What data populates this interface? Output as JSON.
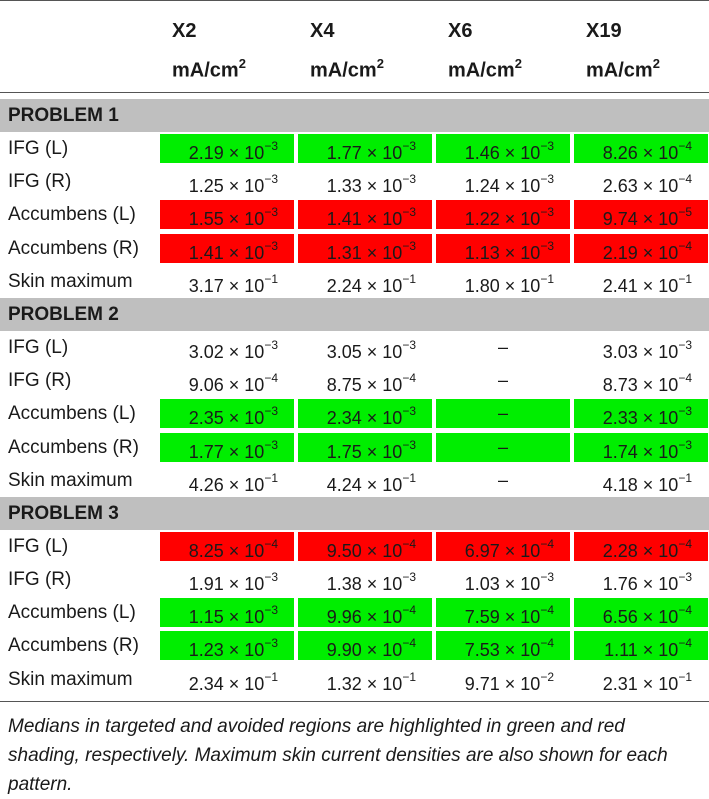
{
  "header": {
    "columns": [
      {
        "label": "X2",
        "unit_base": "mA/cm",
        "unit_exp": "2"
      },
      {
        "label": "X4",
        "unit_base": "mA/cm",
        "unit_exp": "2"
      },
      {
        "label": "X6",
        "unit_base": "mA/cm",
        "unit_exp": "2"
      },
      {
        "label": "X19",
        "unit_base": "mA/cm",
        "unit_exp": "2"
      }
    ]
  },
  "colors": {
    "green": "#00ee00",
    "red": "#ff0000",
    "section_gray": "#bfbfbf"
  },
  "sections": [
    {
      "title": "PROBLEM 1",
      "rows": [
        {
          "label": "IFG (L)",
          "cells": [
            {
              "m": "2.19 × 10",
              "e": "−3",
              "hl": "green"
            },
            {
              "m": "1.77 × 10",
              "e": "−3",
              "hl": "green"
            },
            {
              "m": "1.46 × 10",
              "e": "−3",
              "hl": "green"
            },
            {
              "m": "8.26 × 10",
              "e": "−4",
              "hl": "green"
            }
          ]
        },
        {
          "label": "IFG (R)",
          "cells": [
            {
              "m": "1.25 × 10",
              "e": "−3",
              "hl": ""
            },
            {
              "m": "1.33 × 10",
              "e": "−3",
              "hl": ""
            },
            {
              "m": "1.24 × 10",
              "e": "−3",
              "hl": ""
            },
            {
              "m": "2.63 × 10",
              "e": "−4",
              "hl": ""
            }
          ]
        },
        {
          "label": "Accumbens (L)",
          "cells": [
            {
              "m": "1.55 × 10",
              "e": "−3",
              "hl": "red"
            },
            {
              "m": "1.41 × 10",
              "e": "−3",
              "hl": "red"
            },
            {
              "m": "1.22 × 10",
              "e": "−3",
              "hl": "red"
            },
            {
              "m": "9.74 × 10",
              "e": "−5",
              "hl": "red"
            }
          ]
        },
        {
          "label": "Accumbens (R)",
          "cells": [
            {
              "m": "1.41 × 10",
              "e": "−3",
              "hl": "red"
            },
            {
              "m": "1.31 × 10",
              "e": "−3",
              "hl": "red"
            },
            {
              "m": "1.13 × 10",
              "e": "−3",
              "hl": "red"
            },
            {
              "m": "2.19 × 10",
              "e": "−4",
              "hl": "red"
            }
          ]
        },
        {
          "label": "Skin maximum",
          "cells": [
            {
              "m": "3.17 × 10",
              "e": "−1",
              "hl": ""
            },
            {
              "m": "2.24 × 10",
              "e": "−1",
              "hl": ""
            },
            {
              "m": "1.80 × 10",
              "e": "−1",
              "hl": ""
            },
            {
              "m": "2.41 × 10",
              "e": "−1",
              "hl": ""
            }
          ]
        }
      ]
    },
    {
      "title": "PROBLEM 2",
      "rows": [
        {
          "label": "IFG (L)",
          "cells": [
            {
              "m": "3.02 × 10",
              "e": "−3",
              "hl": ""
            },
            {
              "m": "3.05 × 10",
              "e": "−3",
              "hl": ""
            },
            {
              "m": "–",
              "e": "",
              "hl": ""
            },
            {
              "m": "3.03 × 10",
              "e": "−3",
              "hl": ""
            }
          ]
        },
        {
          "label": "IFG (R)",
          "cells": [
            {
              "m": "9.06 × 10",
              "e": "−4",
              "hl": ""
            },
            {
              "m": "8.75 × 10",
              "e": "−4",
              "hl": ""
            },
            {
              "m": "–",
              "e": "",
              "hl": ""
            },
            {
              "m": "8.73 × 10",
              "e": "−4",
              "hl": ""
            }
          ]
        },
        {
          "label": "Accumbens (L)",
          "cells": [
            {
              "m": "2.35 × 10",
              "e": "−3",
              "hl": "green"
            },
            {
              "m": "2.34 × 10",
              "e": "−3",
              "hl": "green"
            },
            {
              "m": "–",
              "e": "",
              "hl": "green"
            },
            {
              "m": "2.33 × 10",
              "e": "−3",
              "hl": "green"
            }
          ]
        },
        {
          "label": "Accumbens (R)",
          "cells": [
            {
              "m": "1.77 × 10",
              "e": "−3",
              "hl": "green"
            },
            {
              "m": "1.75 × 10",
              "e": "−3",
              "hl": "green"
            },
            {
              "m": "–",
              "e": "",
              "hl": "green"
            },
            {
              "m": "1.74 × 10",
              "e": "−3",
              "hl": "green"
            }
          ]
        },
        {
          "label": "Skin maximum",
          "cells": [
            {
              "m": "4.26 × 10",
              "e": "−1",
              "hl": ""
            },
            {
              "m": "4.24 × 10",
              "e": "−1",
              "hl": ""
            },
            {
              "m": "–",
              "e": "",
              "hl": ""
            },
            {
              "m": "4.18 × 10",
              "e": "−1",
              "hl": ""
            }
          ]
        }
      ]
    },
    {
      "title": "PROBLEM 3",
      "rows": [
        {
          "label": "IFG (L)",
          "cells": [
            {
              "m": "8.25 × 10",
              "e": "−4",
              "hl": "red"
            },
            {
              "m": "9.50 × 10",
              "e": "−4",
              "hl": "red"
            },
            {
              "m": "6.97 × 10",
              "e": "−4",
              "hl": "red"
            },
            {
              "m": "2.28 × 10",
              "e": "−4",
              "hl": "red"
            }
          ]
        },
        {
          "label": "IFG (R)",
          "cells": [
            {
              "m": "1.91 × 10",
              "e": "−3",
              "hl": ""
            },
            {
              "m": "1.38 × 10",
              "e": "−3",
              "hl": ""
            },
            {
              "m": "1.03 × 10",
              "e": "−3",
              "hl": ""
            },
            {
              "m": "1.76 × 10",
              "e": "−3",
              "hl": ""
            }
          ]
        },
        {
          "label": "Accumbens (L)",
          "cells": [
            {
              "m": "1.15 × 10",
              "e": "−3",
              "hl": "green"
            },
            {
              "m": "9.96 × 10",
              "e": "−4",
              "hl": "green"
            },
            {
              "m": "7.59 × 10",
              "e": "−4",
              "hl": "green"
            },
            {
              "m": "6.56 × 10",
              "e": "−4",
              "hl": "green"
            }
          ]
        },
        {
          "label": "Accumbens (R)",
          "cells": [
            {
              "m": "1.23 × 10",
              "e": "−3",
              "hl": "green"
            },
            {
              "m": "9.90 × 10",
              "e": "−4",
              "hl": "green"
            },
            {
              "m": "7.53 × 10",
              "e": "−4",
              "hl": "green"
            },
            {
              "m": "1.11 × 10",
              "e": "−4",
              "hl": "green"
            }
          ]
        },
        {
          "label": "Skin maximum",
          "cells": [
            {
              "m": "2.34 × 10",
              "e": "−1",
              "hl": ""
            },
            {
              "m": "1.32 × 10",
              "e": "−1",
              "hl": ""
            },
            {
              "m": "9.71 × 10",
              "e": "−2",
              "hl": ""
            },
            {
              "m": "2.31 × 10",
              "e": "−1",
              "hl": ""
            }
          ]
        }
      ]
    }
  ],
  "footnote": "Medians in targeted and avoided regions are highlighted in green and red shading, respectively. Maximum skin current densities are also shown for each pattern."
}
